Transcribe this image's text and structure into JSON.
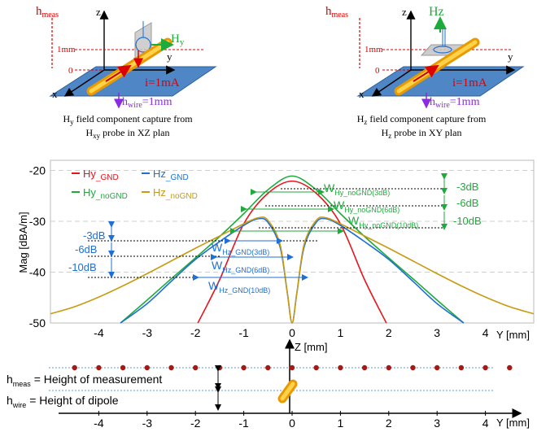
{
  "left_panel": {
    "h_meas_main": "h",
    "h_meas_sub": "meas",
    "axis_z": "z",
    "axis_y": "y",
    "axis_x": "x",
    "field_main": "H",
    "field_sub": "y",
    "tick_1mm": "1mm",
    "tick_0": "0",
    "current": "i=1mA",
    "h_wire_main": "h",
    "h_wire_sub": "wire",
    "h_wire_val": "=1mm",
    "caption_line1_main": "H",
    "caption_line1_sub": "y",
    "caption_line1_rest": " field component capture from",
    "caption_line2_main": "H",
    "caption_line2_sub": "xy",
    "caption_line2_rest": " probe in XZ plan"
  },
  "right_panel": {
    "h_meas_main": "h",
    "h_meas_sub": "meas",
    "axis_z": "z",
    "axis_y": "y",
    "axis_x": "x",
    "field": "Hz",
    "tick_1mm": "1mm",
    "tick_0": "0",
    "current": "i=1mA",
    "h_wire_main": "h",
    "h_wire_sub": "wire",
    "h_wire_val": "=1mm",
    "caption_line1_main": "H",
    "caption_line1_sub": "z",
    "caption_line1_rest": " field component capture from",
    "caption_line2_main": "H",
    "caption_line2_sub": "z",
    "caption_line2_rest": " probe in XY plan"
  },
  "chart": {
    "ylabel": "Mag [dBA/m]",
    "xlabel": "Y [mm]",
    "yticks": [
      "-20",
      "-30",
      "-40",
      "-50"
    ],
    "xticks": [
      "-4",
      "-3",
      "-2",
      "-1",
      "0",
      "1",
      "2",
      "3",
      "4"
    ],
    "legend": [
      {
        "main": "Hy",
        "sub": "_GND",
        "color": "#e8141c"
      },
      {
        "main": "Hz",
        "sub": "_GND",
        "color": "#1f6fd6"
      },
      {
        "main": "Hy",
        "sub": "_noGND",
        "color": "#1faa3c"
      },
      {
        "main": "Hz",
        "sub": "_noGND",
        "color": "#c99a12"
      }
    ],
    "right_db": [
      "-3dB",
      "-6dB",
      "-10dB"
    ],
    "left_db": [
      "-3dB",
      "-6dB",
      "-10dB"
    ],
    "w_green": [
      {
        "main": "W",
        "sub": "Hy_noGND(3dB)"
      },
      {
        "main": "W",
        "sub": "Hy_noGND(6dB)"
      },
      {
        "main": "W",
        "sub": "Hy_noGND(10dB)"
      }
    ],
    "w_blue": [
      {
        "main": "W",
        "sub": "Hz_GND(3dB)"
      },
      {
        "main": "W",
        "sub": "Hz_GND(6dB)"
      },
      {
        "main": "W",
        "sub": "Hz_GND(10dB)"
      }
    ]
  },
  "chart_data": {
    "type": "line",
    "xlabel": "Y [mm]",
    "ylabel": "Mag [dBA/m]",
    "xlim": [
      -5,
      5
    ],
    "ylim": [
      -50,
      -18
    ],
    "series": [
      {
        "name": "Hy_GND",
        "color": "#e8141c",
        "x": [
          -1.95,
          -1.5,
          -1.0,
          -0.5,
          0,
          0.5,
          1.0,
          1.5,
          1.95
        ],
        "y": [
          -50,
          -41.5,
          -30.5,
          -24.5,
          -22.1,
          -24.5,
          -30.5,
          -41.5,
          -50
        ]
      },
      {
        "name": "Hy_noGND",
        "color": "#1faa3c",
        "x": [
          -3.55,
          -3.0,
          -2.5,
          -2.0,
          -1.5,
          -1.0,
          -0.5,
          0,
          0.5,
          1.0,
          1.5,
          2.0,
          2.5,
          3.0,
          3.55
        ],
        "y": [
          -50,
          -45.5,
          -41.3,
          -37.2,
          -33.0,
          -28.5,
          -23.8,
          -21.1,
          -23.8,
          -28.5,
          -33.0,
          -37.2,
          -41.3,
          -45.5,
          -50
        ]
      },
      {
        "name": "Hz_GND",
        "color": "#1f6fd6",
        "x": [
          -3.55,
          -3.0,
          -2.5,
          -2.0,
          -1.5,
          -1.0,
          -0.7,
          -0.5,
          -0.25,
          -0.1,
          0,
          0.1,
          0.25,
          0.5,
          0.7,
          1.0,
          1.5,
          2.0,
          2.5,
          3.0,
          3.55
        ],
        "y": [
          -50,
          -46.2,
          -41.8,
          -37.5,
          -34.0,
          -30.8,
          -29.5,
          -30.2,
          -35.0,
          -44.0,
          -50,
          -44.0,
          -35.0,
          -30.2,
          -29.5,
          -30.8,
          -34.0,
          -37.5,
          -41.8,
          -46.2,
          -50
        ]
      },
      {
        "name": "Hz_noGND",
        "color": "#c99a12",
        "x": [
          -5.0,
          -4.5,
          -4.0,
          -3.5,
          -3.0,
          -2.5,
          -2.0,
          -1.5,
          -1.0,
          -0.7,
          -0.5,
          -0.25,
          -0.1,
          0,
          0.1,
          0.25,
          0.5,
          0.7,
          1.0,
          1.5,
          2.0,
          2.5,
          3.0,
          3.5,
          4.0,
          4.5,
          5.0
        ],
        "y": [
          -48.2,
          -46.8,
          -44.9,
          -42.7,
          -40.3,
          -37.8,
          -35.3,
          -32.9,
          -30.5,
          -29.3,
          -29.8,
          -34.5,
          -44.0,
          -50,
          -44.0,
          -34.5,
          -29.8,
          -29.3,
          -30.5,
          -32.9,
          -35.3,
          -37.8,
          -40.3,
          -42.7,
          -44.9,
          -46.8,
          -48.2
        ]
      }
    ],
    "yticks": [
      -20,
      -30,
      -40,
      -50
    ],
    "xticks": [
      -4,
      -3,
      -2,
      -1,
      0,
      1,
      2,
      3,
      4
    ],
    "grid": "dashed horizontal at -20, -30, -40"
  },
  "bottom": {
    "axis_label": "Z [mm]",
    "xlabel": "Y [mm]",
    "xticks": [
      "-4",
      "-3",
      "-2",
      "-1",
      "0",
      "1",
      "2",
      "3",
      "4"
    ],
    "h_meas_main": "h",
    "h_meas_sub": "meas",
    "h_meas_desc": " = Height of measurement",
    "h_wire_main": "h",
    "h_wire_sub": "wire",
    "h_wire_desc": " = Height of dipole"
  }
}
